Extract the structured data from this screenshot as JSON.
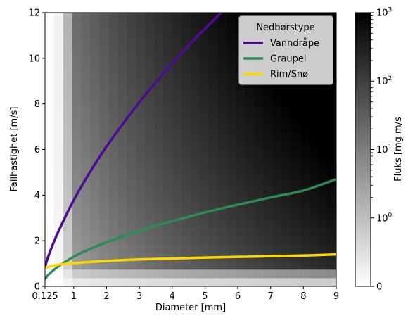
{
  "chart_data": {
    "type": "heatmap",
    "title": "",
    "xlabel": "Diameter [mm]",
    "ylabel": "Fallhastighet [m/s]",
    "xlim": [
      0.125,
      9
    ],
    "ylim": [
      0,
      12
    ],
    "x_ticks": [
      {
        "value": 0.125,
        "label": "0.125"
      },
      {
        "value": 1,
        "label": "1"
      },
      {
        "value": 2,
        "label": "2"
      },
      {
        "value": 3,
        "label": "3"
      },
      {
        "value": 4,
        "label": "4"
      },
      {
        "value": 5,
        "label": "5"
      },
      {
        "value": 6,
        "label": "6"
      },
      {
        "value": 7,
        "label": "7"
      },
      {
        "value": 8,
        "label": "8"
      },
      {
        "value": 9,
        "label": "9"
      }
    ],
    "y_ticks": [
      {
        "value": 0,
        "label": "0"
      },
      {
        "value": 2,
        "label": "2"
      },
      {
        "value": 4,
        "label": "4"
      },
      {
        "value": 6,
        "label": "6"
      },
      {
        "value": 8,
        "label": "8"
      },
      {
        "value": 10,
        "label": "10"
      },
      {
        "value": 12,
        "label": "12"
      }
    ],
    "grid": false,
    "colormap": "Greys",
    "heatmap_bins": {
      "x_count": 32,
      "y_count": 32
    },
    "colorbar": {
      "label": "Fluks [mg m/s",
      "scale": "symlog",
      "range": [
        0,
        1000
      ],
      "linthresh": 1,
      "major_ticks": [
        {
          "value": 0,
          "label": "0"
        },
        {
          "value": 1,
          "label": "10^0",
          "base": "10",
          "exp": "0"
        },
        {
          "value": 10,
          "label": "10^1",
          "base": "10",
          "exp": "1"
        },
        {
          "value": 100,
          "label": "10^2",
          "base": "10",
          "exp": "2"
        },
        {
          "value": 1000,
          "label": "10^3",
          "base": "10",
          "exp": "3"
        }
      ]
    },
    "legend": {
      "title": "Nedbørstype",
      "position": "top-right"
    },
    "series": [
      {
        "name": "Vanndråpe",
        "color": "#4b0c8f",
        "x": [
          0.125,
          0.25,
          0.5,
          1,
          1.5,
          2,
          2.5,
          3,
          3.5,
          4,
          4.5,
          5,
          5.5
        ],
        "y": [
          0.86,
          1.41,
          2.3,
          3.78,
          5.02,
          6.13,
          7.13,
          8.07,
          8.94,
          9.77,
          10.56,
          11.3,
          12.0
        ]
      },
      {
        "name": "Graupel",
        "color": "#2e8b57",
        "x": [
          0.125,
          0.25,
          0.5,
          1,
          1.5,
          2,
          3,
          4,
          5,
          6,
          7,
          8,
          9
        ],
        "y": [
          0.33,
          0.54,
          0.84,
          1.3,
          1.64,
          1.93,
          2.44,
          2.86,
          3.24,
          3.58,
          3.9,
          4.2,
          4.7
        ]
      },
      {
        "name": "Rim/Snø",
        "color": "#ffd700",
        "x": [
          0.125,
          0.25,
          0.5,
          1,
          2,
          3,
          4,
          5,
          6,
          7,
          8,
          9
        ],
        "y": [
          0.8,
          0.86,
          0.94,
          1.02,
          1.11,
          1.18,
          1.22,
          1.26,
          1.29,
          1.32,
          1.35,
          1.4
        ]
      }
    ]
  }
}
